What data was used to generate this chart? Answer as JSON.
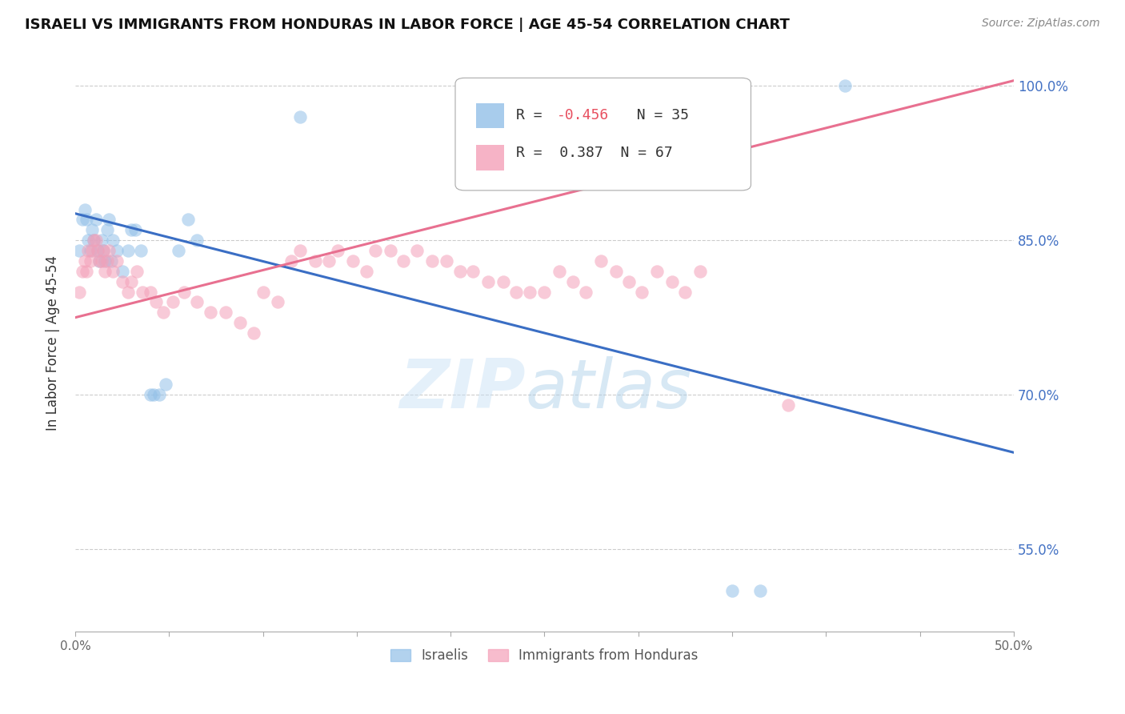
{
  "title": "ISRAELI VS IMMIGRANTS FROM HONDURAS IN LABOR FORCE | AGE 45-54 CORRELATION CHART",
  "source": "Source: ZipAtlas.com",
  "ylabel": "In Labor Force | Age 45-54",
  "xlim": [
    0.0,
    0.5
  ],
  "ylim": [
    0.47,
    1.03
  ],
  "yticks": [
    0.55,
    0.7,
    0.85,
    1.0
  ],
  "ytick_labels": [
    "55.0%",
    "70.0%",
    "85.0%",
    "100.0%"
  ],
  "xticks": [
    0.0,
    0.05,
    0.1,
    0.15,
    0.2,
    0.25,
    0.3,
    0.35,
    0.4,
    0.45,
    0.5
  ],
  "xtick_labels": [
    "0.0%",
    "",
    "",
    "",
    "",
    "",
    "",
    "",
    "",
    "",
    "50.0%"
  ],
  "blue_color": "#92C0E8",
  "pink_color": "#F4A0B8",
  "blue_line_color": "#3A6EC4",
  "pink_line_color": "#E87090",
  "blue_line_x0": 0.0,
  "blue_line_y0": 0.876,
  "blue_line_x1": 0.5,
  "blue_line_y1": 0.644,
  "pink_line_x0": 0.0,
  "pink_line_y0": 0.775,
  "pink_line_x1": 0.5,
  "pink_line_y1": 1.005,
  "israelis_x": [
    0.002,
    0.004,
    0.005,
    0.006,
    0.007,
    0.008,
    0.009,
    0.01,
    0.011,
    0.012,
    0.013,
    0.014,
    0.015,
    0.016,
    0.017,
    0.018,
    0.019,
    0.02,
    0.022,
    0.025,
    0.028,
    0.03,
    0.032,
    0.035,
    0.04,
    0.042,
    0.045,
    0.048,
    0.055,
    0.06,
    0.065,
    0.12,
    0.35,
    0.365,
    0.41
  ],
  "israelis_y": [
    0.84,
    0.87,
    0.88,
    0.87,
    0.85,
    0.84,
    0.86,
    0.85,
    0.87,
    0.84,
    0.83,
    0.85,
    0.84,
    0.83,
    0.86,
    0.87,
    0.83,
    0.85,
    0.84,
    0.82,
    0.84,
    0.86,
    0.86,
    0.84,
    0.7,
    0.7,
    0.7,
    0.71,
    0.84,
    0.87,
    0.85,
    0.97,
    0.51,
    0.51,
    1.0
  ],
  "honduras_x": [
    0.002,
    0.004,
    0.005,
    0.006,
    0.007,
    0.008,
    0.009,
    0.01,
    0.011,
    0.012,
    0.013,
    0.014,
    0.015,
    0.016,
    0.017,
    0.018,
    0.02,
    0.022,
    0.025,
    0.028,
    0.03,
    0.033,
    0.036,
    0.04,
    0.043,
    0.047,
    0.052,
    0.058,
    0.065,
    0.072,
    0.08,
    0.088,
    0.095,
    0.1,
    0.108,
    0.115,
    0.12,
    0.128,
    0.135,
    0.14,
    0.148,
    0.155,
    0.16,
    0.168,
    0.175,
    0.182,
    0.19,
    0.198,
    0.205,
    0.212,
    0.22,
    0.228,
    0.235,
    0.242,
    0.25,
    0.258,
    0.265,
    0.272,
    0.28,
    0.288,
    0.295,
    0.302,
    0.31,
    0.318,
    0.325,
    0.333,
    0.38
  ],
  "honduras_y": [
    0.8,
    0.82,
    0.83,
    0.82,
    0.84,
    0.83,
    0.84,
    0.85,
    0.85,
    0.84,
    0.83,
    0.83,
    0.84,
    0.82,
    0.83,
    0.84,
    0.82,
    0.83,
    0.81,
    0.8,
    0.81,
    0.82,
    0.8,
    0.8,
    0.79,
    0.78,
    0.79,
    0.8,
    0.79,
    0.78,
    0.78,
    0.77,
    0.76,
    0.8,
    0.79,
    0.83,
    0.84,
    0.83,
    0.83,
    0.84,
    0.83,
    0.82,
    0.84,
    0.84,
    0.83,
    0.84,
    0.83,
    0.83,
    0.82,
    0.82,
    0.81,
    0.81,
    0.8,
    0.8,
    0.8,
    0.82,
    0.81,
    0.8,
    0.83,
    0.82,
    0.81,
    0.8,
    0.82,
    0.81,
    0.8,
    0.82,
    0.69
  ]
}
